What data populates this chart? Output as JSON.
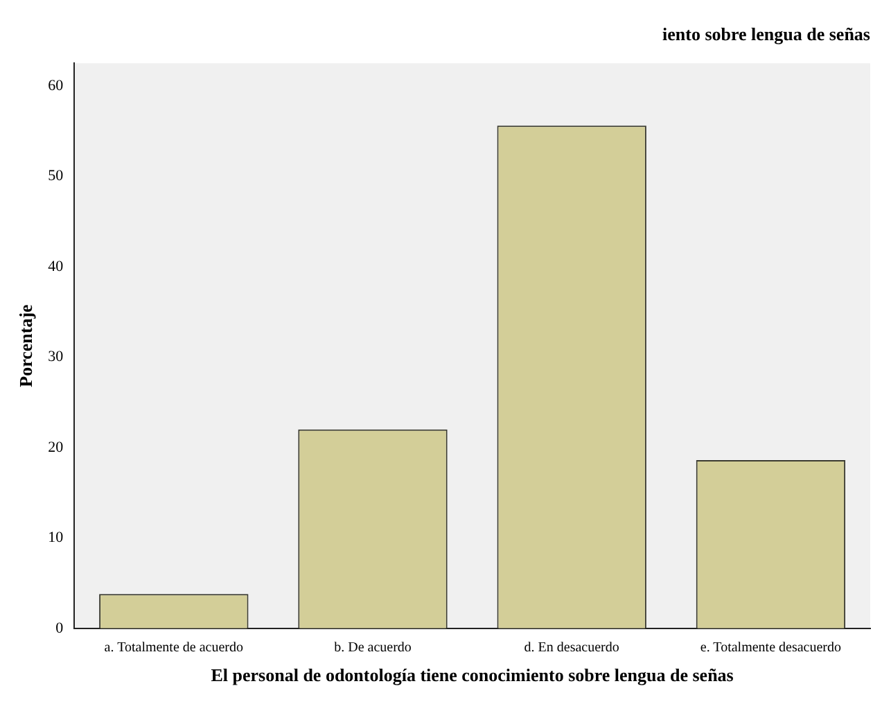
{
  "chart_data": {
    "type": "bar",
    "title": "iento sobre lengua de señas",
    "xlabel": "El personal de odontología tiene conocimiento sobre lengua de señas",
    "ylabel": "Porcentaje",
    "categories": [
      "a. Totalmente de acuerdo",
      "b. De acuerdo",
      "d. En desacuerdo",
      "e. Totalmente desacuerdo"
    ],
    "values": [
      3.8,
      22.0,
      55.6,
      18.6
    ],
    "color": "#d3ce98",
    "ylim": [
      0,
      62.5
    ],
    "yticks": [
      0,
      10,
      20,
      30,
      40,
      50,
      60
    ],
    "grid": false,
    "legend": false
  }
}
